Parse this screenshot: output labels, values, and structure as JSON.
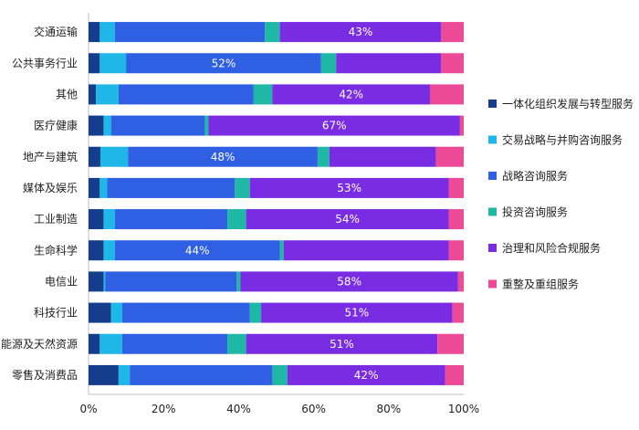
{
  "chart_data": {
    "type": "bar",
    "orientation": "horizontal",
    "stacked": "percent",
    "categories": [
      "交通运输",
      "公共事务行业",
      "其他",
      "医疗健康",
      "地产与建筑",
      "媒体及娱乐",
      "工业制造",
      "生命科学",
      "电信业",
      "科技行业",
      "能源及天然资源",
      "零售及消费品"
    ],
    "series": [
      {
        "name": "一体化组织发展与转型服务",
        "color": "#143d8c",
        "values": [
          3,
          3,
          2,
          4,
          3,
          3,
          4,
          4,
          4,
          6,
          3,
          8
        ]
      },
      {
        "name": "交易战略与并购咨询服务",
        "color": "#1fb6e8",
        "values": [
          4,
          7,
          6,
          2,
          7,
          2,
          3,
          3,
          0.5,
          3,
          6,
          3
        ]
      },
      {
        "name": "战略咨询服务",
        "color": "#2f5fe3",
        "values": [
          40,
          52,
          36,
          25,
          48,
          34,
          30,
          44,
          35,
          34,
          28,
          38
        ]
      },
      {
        "name": "投资咨询服务",
        "color": "#1fb7a6",
        "values": [
          4,
          4,
          5,
          1,
          3,
          4,
          5,
          1,
          1,
          3,
          5,
          4
        ]
      },
      {
        "name": "治理和风险合规服务",
        "color": "#7a2ce3",
        "values": [
          43,
          28,
          42,
          67,
          27,
          53,
          54,
          44,
          58,
          51,
          51,
          42
        ]
      },
      {
        "name": "重整及重组服务",
        "color": "#ec4a96",
        "values": [
          6,
          6,
          9,
          1,
          7,
          4,
          4,
          4,
          1.5,
          3,
          7,
          5
        ]
      }
    ],
    "data_labels": [
      {
        "category": "交通运输",
        "series": "治理和风险合规服务",
        "text": "43%"
      },
      {
        "category": "公共事务行业",
        "series": "战略咨询服务",
        "text": "52%"
      },
      {
        "category": "其他",
        "series": "治理和风险合规服务",
        "text": "42%"
      },
      {
        "category": "医疗健康",
        "series": "治理和风险合规服务",
        "text": "67%"
      },
      {
        "category": "地产与建筑",
        "series": "战略咨询服务",
        "text": "48%"
      },
      {
        "category": "媒体及娱乐",
        "series": "治理和风险合规服务",
        "text": "53%"
      },
      {
        "category": "工业制造",
        "series": "治理和风险合规服务",
        "text": "54%"
      },
      {
        "category": "生命科学",
        "series": "战略咨询服务",
        "text": "44%"
      },
      {
        "category": "电信业",
        "series": "治理和风险合规服务",
        "text": "58%"
      },
      {
        "category": "科技行业",
        "series": "治理和风险合规服务",
        "text": "51%"
      },
      {
        "category": "能源及天然资源",
        "series": "治理和风险合规服务",
        "text": "51%"
      },
      {
        "category": "零售及消费品",
        "series": "治理和风险合规服务",
        "text": "42%"
      }
    ],
    "x_ticks": [
      "0%",
      "20%",
      "40%",
      "60%",
      "80%",
      "100%"
    ],
    "xlim": [
      0,
      100
    ],
    "grid": false,
    "legend_position": "right"
  }
}
